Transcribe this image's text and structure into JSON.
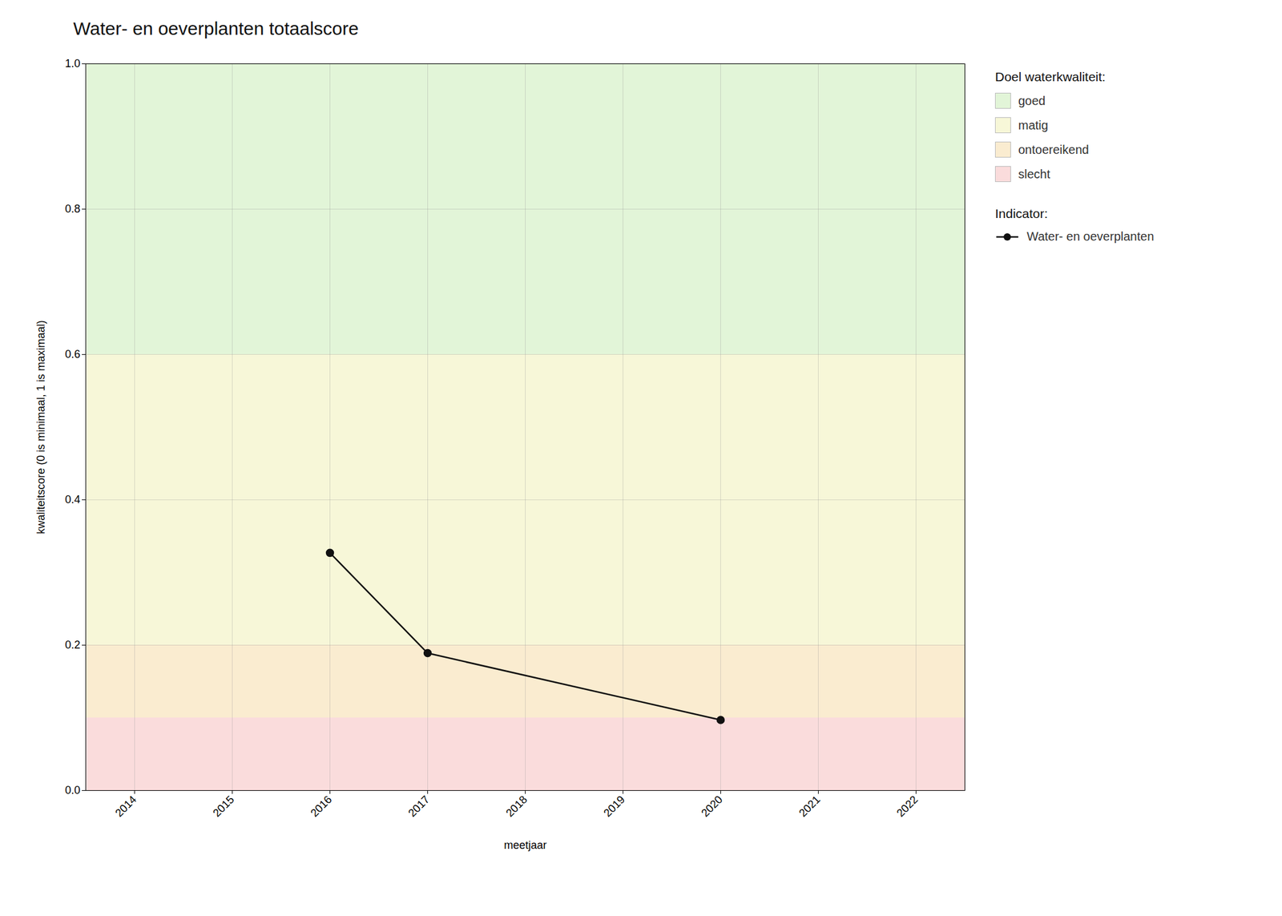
{
  "chart_data": {
    "type": "line",
    "title": "Water- en oeverplanten totaalscore",
    "xlabel": "meetjaar",
    "ylabel": "kwaliteitscore (0 is minimaal, 1 is maximaal)",
    "x": [
      2016,
      2017,
      2020
    ],
    "series": [
      {
        "name": "Water- en oeverplanten",
        "color": "#111111",
        "marker": "circle",
        "values": [
          0.327,
          0.189,
          0.097
        ]
      }
    ],
    "legend_title": "Indicator:",
    "zones": {
      "title": "Doel waterkwaliteit:",
      "items": [
        {
          "ymin": 0.6,
          "ymax": 1.0,
          "color": "#e2f5d8",
          "label": "goed"
        },
        {
          "ymin": 0.2,
          "ymax": 0.6,
          "color": "#f7f7d8",
          "label": "matig"
        },
        {
          "ymin": 0.1,
          "ymax": 0.2,
          "color": "#faecd0",
          "label": "ontoereikend"
        },
        {
          "ymin": 0.0,
          "ymax": 0.1,
          "color": "#fadcdc",
          "label": "slecht"
        }
      ]
    },
    "xlim": [
      2013.5,
      2022.5
    ],
    "xticks": [
      2014,
      2015,
      2016,
      2017,
      2018,
      2019,
      2020,
      2021,
      2022
    ],
    "ylim": [
      0.0,
      1.0
    ],
    "yticks": [
      {
        "value": 0.0,
        "label": "0.0"
      },
      {
        "value": 0.2,
        "label": "0.2"
      },
      {
        "value": 0.4,
        "label": "0.4"
      },
      {
        "value": 0.6,
        "label": "0.6"
      },
      {
        "value": 0.8,
        "label": "0.8"
      },
      {
        "value": 1.0,
        "label": "1.0"
      }
    ],
    "grid": true,
    "legend": "right"
  }
}
